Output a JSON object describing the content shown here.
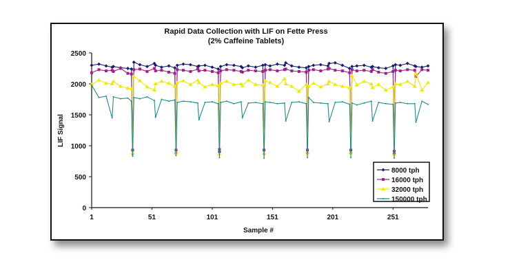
{
  "chart_data": {
    "type": "line",
    "title": "Rapid Data Collection with LIF on Fette Press",
    "subtitle": "(2% Caffeine Tablets)",
    "xlabel": "Sample #",
    "ylabel": "LIF Signal",
    "xlim": [
      1,
      280
    ],
    "ylim": [
      0,
      2500
    ],
    "yticks": [
      "0",
      "500",
      "1000",
      "1500",
      "2000",
      "2500"
    ],
    "xticks": [
      "1",
      "51",
      "101",
      "151",
      "201",
      "251"
    ],
    "grid": false,
    "legend_position": "bottom-right",
    "x": [
      1,
      7,
      13,
      18,
      19,
      25,
      31,
      34,
      35,
      36,
      41,
      47,
      53,
      54,
      59,
      65,
      70,
      71,
      72,
      77,
      83,
      89,
      90,
      95,
      101,
      106,
      107,
      108,
      113,
      119,
      125,
      126,
      131,
      137,
      143,
      144,
      145,
      149,
      155,
      161,
      162,
      167,
      173,
      179,
      180,
      181,
      185,
      191,
      197,
      198,
      203,
      209,
      215,
      216,
      217,
      221,
      227,
      233,
      234,
      239,
      245,
      251,
      252,
      253,
      257,
      263,
      269,
      270,
      275,
      280
    ],
    "series": [
      {
        "name": "8000 tph",
        "color": "#1a1a6e",
        "marker": "diamond",
        "values": [
          2300,
          2320,
          2290,
          2270,
          2280,
          2260,
          2250,
          2240,
          870,
          2350,
          2310,
          2280,
          2330,
          2300,
          2270,
          2290,
          2260,
          880,
          2300,
          2320,
          2310,
          2280,
          2290,
          2300,
          2270,
          2240,
          900,
          2280,
          2310,
          2300,
          2280,
          2260,
          2290,
          2270,
          2300,
          870,
          2310,
          2290,
          2320,
          2300,
          2340,
          2290,
          2270,
          2260,
          880,
          2280,
          2300,
          2310,
          2290,
          2330,
          2340,
          2300,
          2250,
          880,
          2280,
          2290,
          2300,
          2270,
          2280,
          2260,
          2250,
          2290,
          870,
          2310,
          2300,
          2330,
          2290,
          2280,
          2270,
          2290
        ]
      },
      {
        "name": "16000 tph",
        "color": "#a0208c",
        "marker": "square",
        "values": [
          2180,
          2230,
          2210,
          2220,
          2200,
          2250,
          2170,
          2160,
          930,
          2230,
          2240,
          2200,
          2250,
          2210,
          2220,
          2190,
          2170,
          930,
          2230,
          2220,
          2200,
          2240,
          2210,
          2220,
          2200,
          2180,
          940,
          2210,
          2230,
          2220,
          2200,
          2190,
          2220,
          2210,
          2200,
          930,
          2220,
          2230,
          2210,
          2230,
          2240,
          2210,
          2200,
          2190,
          930,
          2220,
          2230,
          2210,
          2240,
          2250,
          2220,
          2210,
          2180,
          930,
          2230,
          2210,
          2220,
          2200,
          2230,
          2190,
          2170,
          2200,
          910,
          2220,
          2210,
          2230,
          2220,
          2120,
          2230,
          2220
        ]
      },
      {
        "name": "32000 tph",
        "color": "#f0e800",
        "marker": "triangle",
        "values": [
          1990,
          2060,
          2010,
          2000,
          2040,
          1960,
          1930,
          1920,
          880,
          2120,
          2050,
          1950,
          1900,
          2000,
          2040,
          2010,
          1960,
          880,
          2020,
          2050,
          1990,
          2060,
          2020,
          1950,
          1990,
          1970,
          870,
          2010,
          2040,
          1990,
          2000,
          1970,
          2060,
          1990,
          1980,
          880,
          2050,
          2020,
          1960,
          2080,
          2000,
          1960,
          1880,
          1990,
          880,
          1960,
          2010,
          1950,
          2000,
          2040,
          1990,
          1960,
          1940,
          880,
          2130,
          1980,
          2040,
          2000,
          1940,
          1990,
          1900,
          1950,
          860,
          2000,
          1990,
          2040,
          1960,
          2170,
          1900,
          2020
        ]
      },
      {
        "name": "150000 tph",
        "color": "#1f8a8a",
        "marker": "dot",
        "values": [
          1980,
          1780,
          1800,
          1450,
          1790,
          1760,
          1770,
          1720,
          830,
          1780,
          1760,
          1790,
          1730,
          1460,
          1750,
          1720,
          1740,
          840,
          1700,
          1720,
          1710,
          1690,
          1420,
          1700,
          1710,
          1680,
          810,
          1700,
          1720,
          1680,
          1710,
          1450,
          1690,
          1700,
          1680,
          800,
          1710,
          1700,
          1680,
          1690,
          1400,
          1700,
          1710,
          1680,
          810,
          1780,
          1700,
          1690,
          1680,
          1390,
          1700,
          1710,
          1670,
          810,
          1690,
          1660,
          1690,
          1720,
          1400,
          1700,
          1680,
          1670,
          800,
          1690,
          1700,
          1680,
          1680,
          1380,
          1720,
          1670
        ]
      }
    ]
  }
}
